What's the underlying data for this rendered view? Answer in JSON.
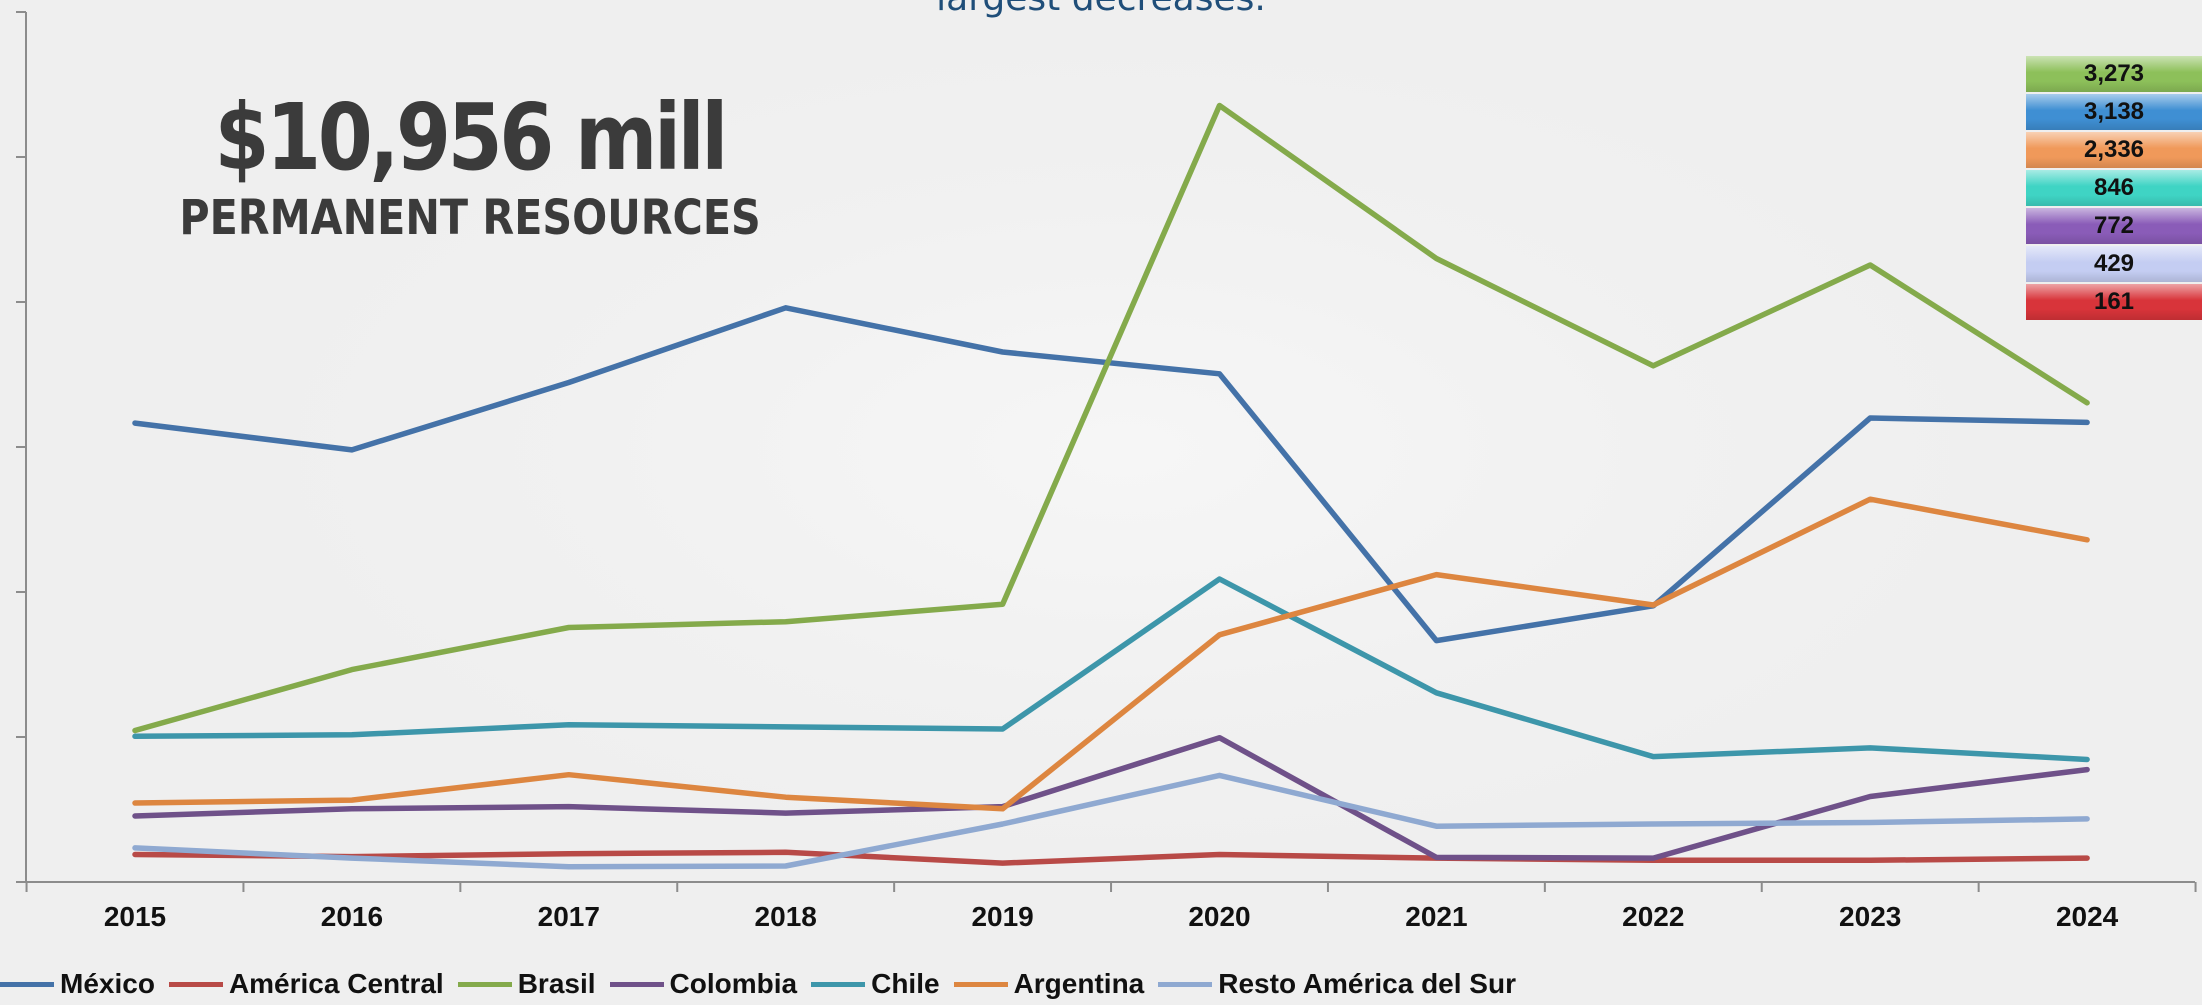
{
  "header": {
    "subtitle_fragment": "largest decreases."
  },
  "headline": {
    "amount": "$10,956 mill",
    "caption": "PERMANENT RESOURCES"
  },
  "value_box": [
    {
      "value": "3,273",
      "color": "#8dc05a"
    },
    {
      "value": "3,138",
      "color": "#3f8fd3"
    },
    {
      "value": "2,336",
      "color": "#f0995a"
    },
    {
      "value": "846",
      "color": "#3fd4c4"
    },
    {
      "value": "772",
      "color": "#8a5cb8"
    },
    {
      "value": "429",
      "color": "#c4cdf2"
    },
    {
      "value": "161",
      "color": "#d8343a"
    }
  ],
  "chart_data": {
    "type": "line",
    "title": "",
    "xlabel": "",
    "ylabel": "",
    "categories": [
      "2015",
      "2016",
      "2017",
      "2018",
      "2019",
      "2020",
      "2021",
      "2022",
      "2023",
      "2024"
    ],
    "grid": false,
    "legend_position": "bottom",
    "series": [
      {
        "name": "México",
        "color": "#4472a8",
        "values": [
          3165,
          2980,
          3445,
          3960,
          3655,
          3505,
          1665,
          1905,
          3200,
          3170
        ]
      },
      {
        "name": "América Central",
        "color": "#b84a47",
        "values": [
          190,
          175,
          195,
          205,
          130,
          190,
          165,
          150,
          150,
          165
        ]
      },
      {
        "name": "Brasil",
        "color": "#84aa4b",
        "values": [
          1045,
          1465,
          1755,
          1795,
          1915,
          5355,
          4300,
          3560,
          4255,
          3305
        ]
      },
      {
        "name": "Colombia",
        "color": "#6f5189",
        "values": [
          455,
          505,
          520,
          475,
          520,
          995,
          170,
          165,
          590,
          775
        ]
      },
      {
        "name": "Chile",
        "color": "#3d96aa",
        "values": [
          1005,
          1015,
          1085,
          1070,
          1055,
          2090,
          1305,
          865,
          925,
          845
        ]
      },
      {
        "name": "Argentina",
        "color": "#dd8640",
        "values": [
          545,
          565,
          740,
          585,
          505,
          1705,
          2120,
          1910,
          2640,
          2360
        ]
      },
      {
        "name": "Resto América del Sur",
        "color": "#8fa9d1",
        "values": [
          235,
          165,
          105,
          110,
          400,
          735,
          385,
          400,
          410,
          435
        ]
      }
    ],
    "ylim": [
      0,
      6000
    ]
  }
}
